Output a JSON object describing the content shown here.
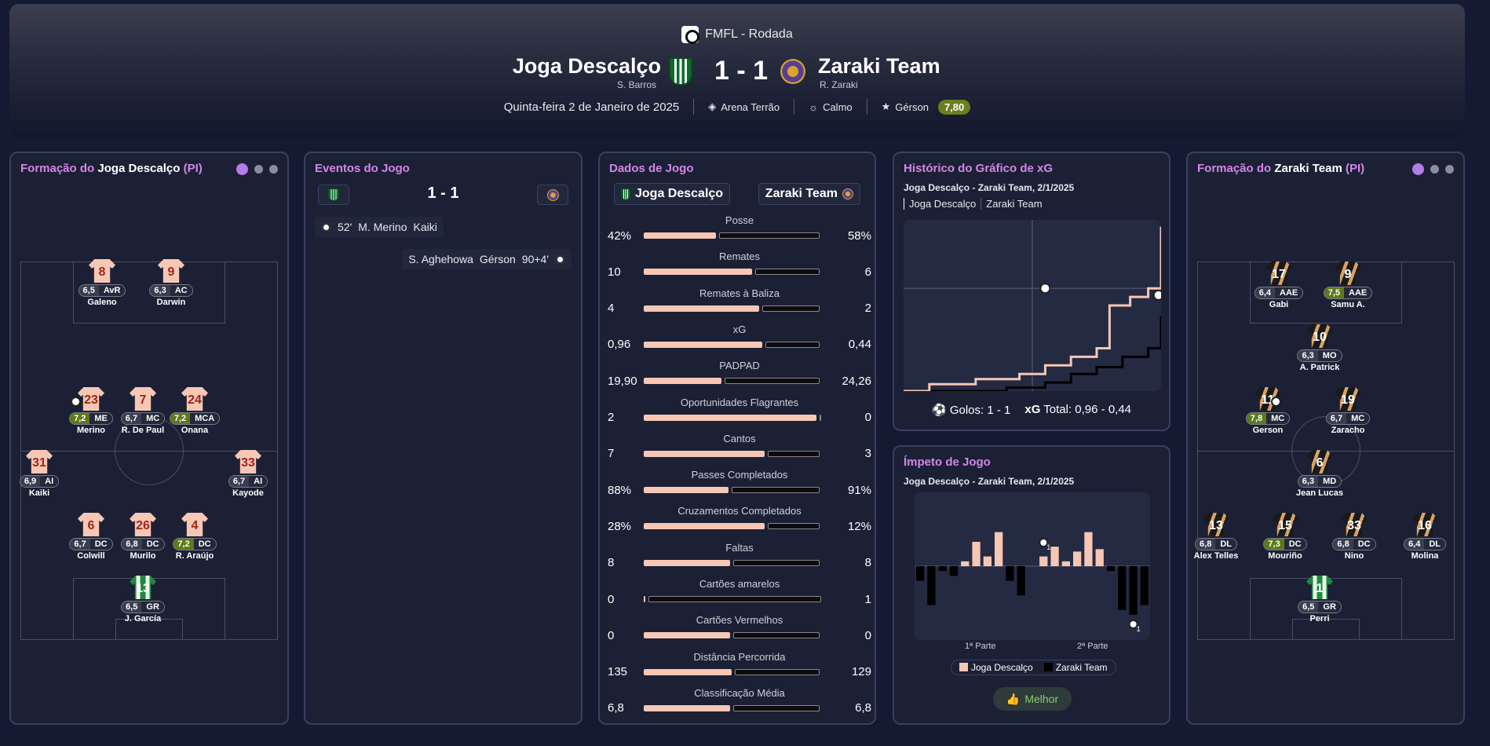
{
  "header": {
    "competition": "FMFL - Rodada",
    "home": {
      "name": "Joga Descalço",
      "manager": "S. Barros"
    },
    "away": {
      "name": "Zaraki Team",
      "manager": "R. Zaraki"
    },
    "score": "1 - 1",
    "date": "Quinta-feira 2 de Janeiro de 2025",
    "stadium": "Arena Terrão",
    "weather": "Calmo",
    "motm": {
      "name": "Gérson",
      "rating": "7,80"
    }
  },
  "home_formation": {
    "title_pre": "Formação do ",
    "team": "Joga Descalço",
    "suffix": "(PI)",
    "players": [
      {
        "num": "8",
        "rating": "6,5",
        "pos": "AvR",
        "name": "Galeno",
        "hi": false
      },
      {
        "num": "9",
        "rating": "6,3",
        "pos": "AC",
        "name": "Darwin",
        "hi": false
      },
      {
        "num": "23",
        "rating": "7,2",
        "pos": "ME",
        "name": "Merino",
        "hi": true
      },
      {
        "num": "7",
        "rating": "6,7",
        "pos": "MC",
        "name": "R. De Paul",
        "hi": false
      },
      {
        "num": "24",
        "rating": "7,2",
        "pos": "MCA",
        "name": "Onana",
        "hi": true
      },
      {
        "num": "31",
        "rating": "6,9",
        "pos": "AI",
        "name": "Kaiki",
        "hi": false
      },
      {
        "num": "33",
        "rating": "6,7",
        "pos": "AI",
        "name": "Kayode",
        "hi": false
      },
      {
        "num": "6",
        "rating": "6,7",
        "pos": "DC",
        "name": "Colwill",
        "hi": false
      },
      {
        "num": "26",
        "rating": "6,8",
        "pos": "DC",
        "name": "Murilo",
        "hi": false
      },
      {
        "num": "4",
        "rating": "7,2",
        "pos": "DC",
        "name": "R. Araújo",
        "hi": true
      },
      {
        "num": "13",
        "rating": "6,5",
        "pos": "GR",
        "name": "J. García",
        "hi": false
      }
    ]
  },
  "away_formation": {
    "title_pre": "Formação do ",
    "team": "Zaraki Team",
    "suffix": "(PI)",
    "players": [
      {
        "num": "17",
        "rating": "6,4",
        "pos": "AAE",
        "name": "Gabi",
        "hi": false
      },
      {
        "num": "9",
        "rating": "7,5",
        "pos": "AAE",
        "name": "Samu A.",
        "hi": true
      },
      {
        "num": "10",
        "rating": "6,3",
        "pos": "MO",
        "name": "A. Patrick",
        "hi": false
      },
      {
        "num": "11",
        "rating": "7,8",
        "pos": "MC",
        "name": "Gerson",
        "hi": true
      },
      {
        "num": "19",
        "rating": "6,7",
        "pos": "MC",
        "name": "Zaracho",
        "hi": false
      },
      {
        "num": "6",
        "rating": "6,3",
        "pos": "MD",
        "name": "Jean Lucas",
        "hi": false
      },
      {
        "num": "13",
        "rating": "6,8",
        "pos": "DL",
        "name": "Alex Telles",
        "hi": false
      },
      {
        "num": "15",
        "rating": "7,3",
        "pos": "DC",
        "name": "Mouriño",
        "hi": true
      },
      {
        "num": "33",
        "rating": "6,8",
        "pos": "DC",
        "name": "Nino",
        "hi": false
      },
      {
        "num": "16",
        "rating": "6,4",
        "pos": "DL",
        "name": "Molina",
        "hi": false
      },
      {
        "num": "1",
        "rating": "6,5",
        "pos": "GR",
        "name": "Perri",
        "hi": false
      }
    ]
  },
  "events": {
    "title": "Eventos do Jogo",
    "score": "1 - 1",
    "home_event": {
      "minute": "52'",
      "scorer": "M. Merino",
      "assist": "Kaiki"
    },
    "away_event": {
      "assist": "S. Aghehowa",
      "scorer": "Gérson",
      "minute": "90+4'"
    }
  },
  "match_stats": {
    "title": "Dados de Jogo",
    "home": "Joga Descalço",
    "away": "Zaraki Team",
    "rows": [
      {
        "label": "Posse",
        "home": "42%",
        "away": "58%",
        "hf": 0.42
      },
      {
        "label": "Remates",
        "home": "10",
        "away": "6",
        "hf": 0.625
      },
      {
        "label": "Remates à Baliza",
        "home": "4",
        "away": "2",
        "hf": 0.667
      },
      {
        "label": "xG",
        "home": "0,96",
        "away": "0,44",
        "hf": 0.686
      },
      {
        "label": "PADPAD",
        "home": "19,90",
        "away": "24,26",
        "hf": 0.45
      },
      {
        "label": "Oportunidades Flagrantes",
        "home": "2",
        "away": "0",
        "hf": 1.0
      },
      {
        "label": "Cantos",
        "home": "7",
        "away": "3",
        "hf": 0.7
      },
      {
        "label": "Passes Completados",
        "home": "88%",
        "away": "91%",
        "hf": 0.49
      },
      {
        "label": "Cruzamentos Completados",
        "home": "28%",
        "away": "12%",
        "hf": 0.7
      },
      {
        "label": "Faltas",
        "home": "8",
        "away": "8",
        "hf": 0.5
      },
      {
        "label": "Cartões amarelos",
        "home": "0",
        "away": "1",
        "hf": 0.0
      },
      {
        "label": "Cartões Vermelhos",
        "home": "0",
        "away": "0",
        "hf": 0.5
      },
      {
        "label": "Distância Percorrida",
        "home": "135",
        "away": "129",
        "hf": 0.51
      },
      {
        "label": "Classificação Média",
        "home": "6,8",
        "away": "6,8",
        "hf": 0.5
      }
    ]
  },
  "xg_chart": {
    "title": "Histórico do Gráfico de xG",
    "subtitle": "Joga Descalço - Zaraki Team, 2/1/2025",
    "legend_home": "Joga Descalço",
    "legend_away": "Zaraki Team",
    "goals_label": "Golos: 1 - 1",
    "xg_label": "xG",
    "total_label": "Total: 0,96  -  0,44",
    "home_steps": [
      [
        0,
        0
      ],
      [
        10,
        0.04
      ],
      [
        28,
        0.07
      ],
      [
        45,
        0.1
      ],
      [
        55,
        0.15
      ],
      [
        65,
        0.2
      ],
      [
        75,
        0.25
      ],
      [
        80,
        0.5
      ],
      [
        88,
        0.55
      ],
      [
        95,
        0.6
      ],
      [
        100,
        0.96
      ]
    ],
    "away_steps": [
      [
        0,
        0
      ],
      [
        40,
        0.02
      ],
      [
        55,
        0.05
      ],
      [
        65,
        0.1
      ],
      [
        75,
        0.14
      ],
      [
        85,
        0.2
      ],
      [
        95,
        0.25
      ],
      [
        100,
        0.44
      ]
    ],
    "colors": {
      "home": "#f6c7b4",
      "away": "#000000"
    }
  },
  "momentum": {
    "title": "Ímpeto de Jogo",
    "subtitle": "Joga Descalço - Zaraki Team, 2/1/2025",
    "half1": "1ª Parte",
    "half2": "2ª Parte",
    "legend_home": "Joga Descalço",
    "legend_away": "Zaraki Team",
    "button": "Melhor",
    "bars": [
      -0.3,
      -0.8,
      -0.1,
      -0.2,
      0.1,
      0.5,
      0.2,
      0.7,
      -0.3,
      -0.6,
      0,
      0.2,
      0.4,
      0.1,
      0.3,
      0.7,
      0.35,
      -0.1,
      -0.9,
      -1,
      -0.8
    ],
    "goal_markers": [
      "1",
      "1"
    ]
  }
}
